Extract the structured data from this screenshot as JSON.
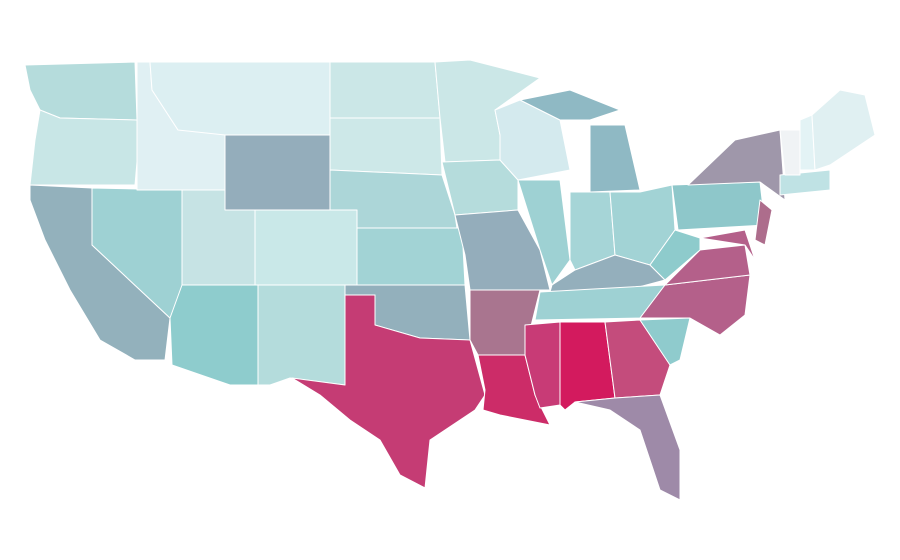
{
  "map": {
    "regions": [
      {
        "color": "#b5dcdc"
      },
      {
        "color": "#c8e6e6"
      },
      {
        "color": "#93b1bc"
      },
      {
        "color": "#9ed1d3"
      },
      {
        "color": "#e0f0f3"
      },
      {
        "color": "#dceff2"
      },
      {
        "color": "#94adbb"
      },
      {
        "color": "#c6e3e4"
      },
      {
        "color": "#c9e8e8"
      },
      {
        "color": "#8ecccd"
      },
      {
        "color": "#b4dcdc"
      },
      {
        "color": "#cbe7e7"
      },
      {
        "color": "#cde8e8"
      },
      {
        "color": "#acd6d8"
      },
      {
        "color": "#a2d3d5"
      },
      {
        "color": "#93b0bc"
      },
      {
        "color": "#c53c74"
      },
      {
        "color": "#cbe7e7"
      },
      {
        "color": "#b5dcdc"
      },
      {
        "color": "#94adbb"
      },
      {
        "color": "#a9758f"
      },
      {
        "color": "#cc2c68"
      },
      {
        "color": "#d4eaee"
      },
      {
        "color": "#9ed1d3"
      },
      {
        "color": "#8fb9c4"
      },
      {
        "color": "#a6d5d7"
      },
      {
        "color": "#a2d3d5"
      },
      {
        "color": "#94afbc"
      },
      {
        "color": "#9ed1d3"
      },
      {
        "color": "#c83b76"
      },
      {
        "color": "#d31a5e"
      },
      {
        "color": "#c44c7c"
      },
      {
        "color": "#9e8aa8"
      },
      {
        "color": "#8fcbcd"
      },
      {
        "color": "#b4608a"
      },
      {
        "color": "#b4608a"
      },
      {
        "color": "#8ecbcc"
      },
      {
        "color": "#8ec7ca"
      },
      {
        "color": "#9f97aa"
      },
      {
        "color": "#b4608a"
      },
      {
        "color": "#ad6d8c"
      },
      {
        "color": "#bfe2e4"
      },
      {
        "color": "#f0f3f5"
      },
      {
        "color": "#e3f3f5"
      },
      {
        "color": "#e0f0f2"
      }
    ]
  }
}
